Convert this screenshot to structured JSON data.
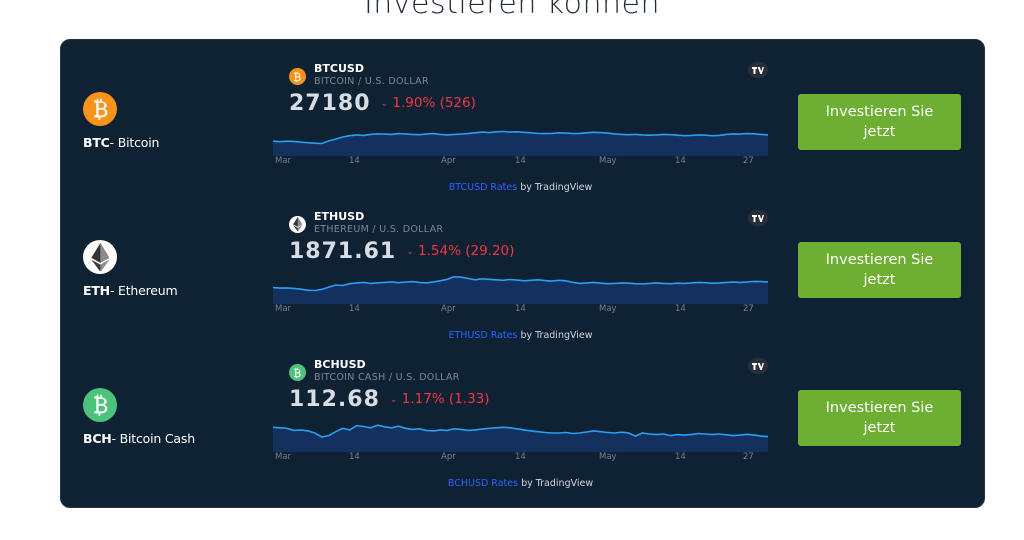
{
  "heading": "Investieren können",
  "colors": {
    "panel": "#0f2233",
    "button": "#6caf32",
    "negative": "#f23645",
    "link": "#2962ff",
    "line": "#2a9df4"
  },
  "rows": [
    {
      "coin_code": "BTC",
      "coin_name": "- Bitcoin",
      "icon": "bitcoin-icon",
      "icon_color": "#f7931a",
      "symbol": "BTCUSD",
      "description": "BITCOIN / U.S. DOLLAR",
      "price": "27180",
      "change": "1.90% (526)",
      "x_labels": [
        "Mar",
        "14",
        "Apr",
        "14",
        "May",
        "14",
        "27"
      ],
      "footer_link": "BTCUSD Rates",
      "footer_by": " by TradingView",
      "button_label": "Investieren Sie jetzt",
      "chart": [
        0.34,
        0.32,
        0.34,
        0.33,
        0.3,
        0.28,
        0.26,
        0.25,
        0.35,
        0.42,
        0.5,
        0.55,
        0.58,
        0.56,
        0.6,
        0.62,
        0.61,
        0.6,
        0.63,
        0.62,
        0.6,
        0.59,
        0.61,
        0.63,
        0.6,
        0.58,
        0.6,
        0.61,
        0.63,
        0.66,
        0.69,
        0.67,
        0.7,
        0.71,
        0.69,
        0.7,
        0.68,
        0.66,
        0.64,
        0.63,
        0.64,
        0.66,
        0.65,
        0.63,
        0.64,
        0.66,
        0.68,
        0.67,
        0.65,
        0.62,
        0.6,
        0.59,
        0.6,
        0.58,
        0.57,
        0.58,
        0.6,
        0.59,
        0.57,
        0.55,
        0.56,
        0.58,
        0.57,
        0.55,
        0.56,
        0.6,
        0.62,
        0.61,
        0.63,
        0.62,
        0.6,
        0.58
      ]
    },
    {
      "coin_code": "ETH",
      "coin_name": "- Ethereum",
      "icon": "ethereum-icon",
      "icon_color": "#ffffff",
      "symbol": "ETHUSD",
      "description": "ETHEREUM / U.S. DOLLAR",
      "price": "1871.61",
      "change": "1.54% (29.20)",
      "x_labels": [
        "Mar",
        "14",
        "Apr",
        "14",
        "May",
        "14",
        "27"
      ],
      "footer_link": "ETHUSD Rates",
      "footer_by": " by TradingView",
      "button_label": "Investieren Sie jetzt",
      "chart": [
        0.4,
        0.38,
        0.39,
        0.37,
        0.34,
        0.3,
        0.29,
        0.33,
        0.42,
        0.5,
        0.48,
        0.55,
        0.58,
        0.6,
        0.56,
        0.58,
        0.6,
        0.62,
        0.59,
        0.61,
        0.63,
        0.6,
        0.58,
        0.62,
        0.66,
        0.72,
        0.82,
        0.8,
        0.75,
        0.7,
        0.74,
        0.72,
        0.7,
        0.68,
        0.71,
        0.69,
        0.66,
        0.68,
        0.7,
        0.67,
        0.65,
        0.68,
        0.66,
        0.6,
        0.56,
        0.58,
        0.6,
        0.57,
        0.55,
        0.56,
        0.58,
        0.57,
        0.55,
        0.54,
        0.56,
        0.58,
        0.56,
        0.55,
        0.57,
        0.56,
        0.58,
        0.6,
        0.59,
        0.57,
        0.58,
        0.6,
        0.61,
        0.6,
        0.62,
        0.64,
        0.63,
        0.62
      ]
    },
    {
      "coin_code": "BCH",
      "coin_name": "- Bitcoin Cash",
      "icon": "bitcoin-cash-icon",
      "icon_color": "#4cc27a",
      "symbol": "BCHUSD",
      "description": "BITCOIN CASH / U.S. DOLLAR",
      "price": "112.68",
      "change": "1.17% (1.33)",
      "x_labels": [
        "Mar",
        "14",
        "Apr",
        "14",
        "May",
        "14",
        "27"
      ],
      "footer_link": "BCHUSD Rates",
      "footer_by": " by TradingView",
      "button_label": "Investieren Sie jetzt",
      "chart": [
        0.72,
        0.7,
        0.68,
        0.6,
        0.62,
        0.58,
        0.5,
        0.35,
        0.4,
        0.55,
        0.68,
        0.62,
        0.78,
        0.75,
        0.7,
        0.8,
        0.74,
        0.7,
        0.76,
        0.68,
        0.64,
        0.66,
        0.6,
        0.58,
        0.62,
        0.6,
        0.66,
        0.64,
        0.6,
        0.62,
        0.65,
        0.68,
        0.7,
        0.72,
        0.7,
        0.66,
        0.62,
        0.58,
        0.55,
        0.52,
        0.5,
        0.5,
        0.52,
        0.48,
        0.5,
        0.54,
        0.58,
        0.55,
        0.52,
        0.5,
        0.53,
        0.5,
        0.38,
        0.5,
        0.46,
        0.44,
        0.46,
        0.4,
        0.44,
        0.42,
        0.44,
        0.48,
        0.46,
        0.44,
        0.46,
        0.43,
        0.4,
        0.42,
        0.45,
        0.42,
        0.38,
        0.36
      ]
    }
  ]
}
